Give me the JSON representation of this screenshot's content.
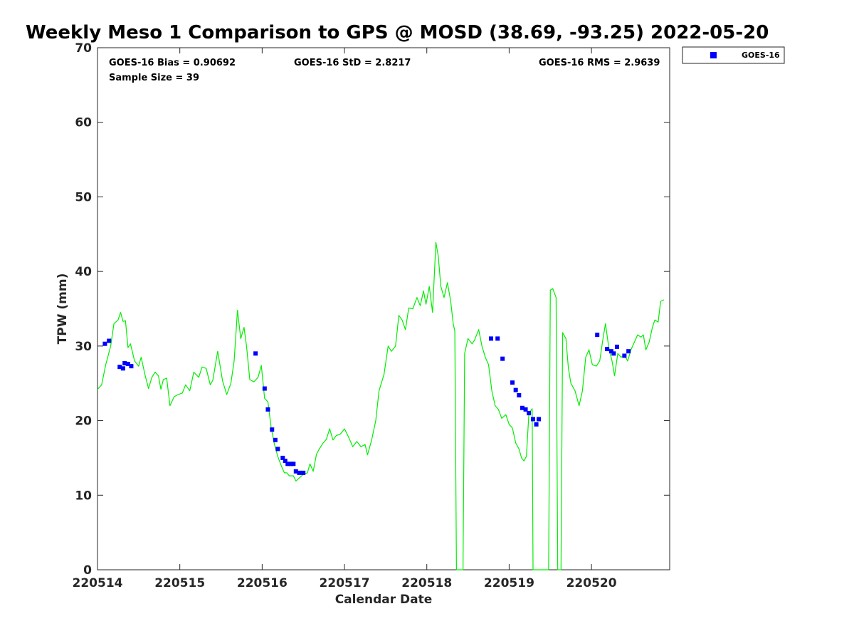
{
  "chart_data": {
    "type": "scatter",
    "title": "Weekly Meso 1 Comparison to GPS @ MOSD (38.69, -93.25) 2022-05-20",
    "xlabel": "Calendar Date",
    "ylabel": "TPW (mm)",
    "x_units": "days since 220514 tick",
    "xlim": [
      0,
      6.95
    ],
    "ylim": [
      0,
      70
    ],
    "x_ticks": [
      0,
      1,
      2,
      3,
      4,
      5,
      6
    ],
    "x_tick_labels": [
      "220514",
      "220515",
      "220516",
      "220517",
      "220518",
      "220519",
      "220520"
    ],
    "y_ticks": [
      0,
      10,
      20,
      30,
      40,
      50,
      60,
      70
    ],
    "y_tick_labels": [
      "0",
      "10",
      "20",
      "30",
      "40",
      "50",
      "60",
      "70"
    ],
    "grid": false,
    "legend_position": "top-right, outside",
    "stats": {
      "bias": "GOES-16 Bias = 0.90692",
      "std": "GOES-16 StD = 2.8217",
      "rms": "GOES-16 RMS = 2.9639",
      "sample": "Sample Size = 39"
    },
    "series": [
      {
        "name": "GOES-16",
        "kind": "scatter",
        "marker": "square",
        "color": "#0000ff",
        "points": [
          [
            0.09,
            30.3
          ],
          [
            0.14,
            30.7
          ],
          [
            0.27,
            27.2
          ],
          [
            0.31,
            27.0
          ],
          [
            0.33,
            27.7
          ],
          [
            0.37,
            27.6
          ],
          [
            0.41,
            27.3
          ],
          [
            1.92,
            29.0
          ],
          [
            2.03,
            24.3
          ],
          [
            2.07,
            21.5
          ],
          [
            2.12,
            18.8
          ],
          [
            2.16,
            17.4
          ],
          [
            2.19,
            16.2
          ],
          [
            2.25,
            15.0
          ],
          [
            2.28,
            14.6
          ],
          [
            2.31,
            14.2
          ],
          [
            2.35,
            14.2
          ],
          [
            2.38,
            14.2
          ],
          [
            2.41,
            13.2
          ],
          [
            2.45,
            13.0
          ],
          [
            2.5,
            13.0
          ],
          [
            4.78,
            31.0
          ],
          [
            4.86,
            31.0
          ],
          [
            4.92,
            28.3
          ],
          [
            5.04,
            25.1
          ],
          [
            5.08,
            24.1
          ],
          [
            5.12,
            23.4
          ],
          [
            5.16,
            21.7
          ],
          [
            5.2,
            21.5
          ],
          [
            5.24,
            21.0
          ],
          [
            5.29,
            20.2
          ],
          [
            5.33,
            19.5
          ],
          [
            5.36,
            20.2
          ],
          [
            6.07,
            31.5
          ],
          [
            6.19,
            29.6
          ],
          [
            6.24,
            29.3
          ],
          [
            6.27,
            29.0
          ],
          [
            6.31,
            29.9
          ],
          [
            6.4,
            28.7
          ],
          [
            6.45,
            29.3
          ]
        ]
      },
      {
        "name": "GPS",
        "kind": "line",
        "color": "#00ee00",
        "points": [
          [
            0.0,
            24.2
          ],
          [
            0.05,
            24.8
          ],
          [
            0.1,
            27.5
          ],
          [
            0.16,
            30.0
          ],
          [
            0.2,
            33.0
          ],
          [
            0.25,
            33.5
          ],
          [
            0.28,
            34.5
          ],
          [
            0.31,
            33.3
          ],
          [
            0.34,
            33.4
          ],
          [
            0.37,
            29.8
          ],
          [
            0.4,
            30.3
          ],
          [
            0.45,
            28.0
          ],
          [
            0.5,
            27.3
          ],
          [
            0.53,
            28.5
          ],
          [
            0.58,
            26.0
          ],
          [
            0.62,
            24.3
          ],
          [
            0.66,
            25.8
          ],
          [
            0.7,
            26.5
          ],
          [
            0.74,
            26.0
          ],
          [
            0.77,
            24.2
          ],
          [
            0.8,
            25.5
          ],
          [
            0.84,
            25.7
          ],
          [
            0.88,
            22.0
          ],
          [
            0.93,
            23.2
          ],
          [
            0.98,
            23.5
          ],
          [
            1.03,
            23.7
          ],
          [
            1.07,
            24.8
          ],
          [
            1.12,
            24.0
          ],
          [
            1.17,
            26.5
          ],
          [
            1.23,
            25.8
          ],
          [
            1.27,
            27.2
          ],
          [
            1.32,
            27.0
          ],
          [
            1.37,
            24.8
          ],
          [
            1.4,
            25.4
          ],
          [
            1.46,
            29.3
          ],
          [
            1.52,
            25.3
          ],
          [
            1.57,
            23.5
          ],
          [
            1.62,
            25.0
          ],
          [
            1.66,
            28.0
          ],
          [
            1.7,
            34.8
          ],
          [
            1.74,
            31.0
          ],
          [
            1.78,
            32.5
          ],
          [
            1.81,
            30.0
          ],
          [
            1.85,
            25.5
          ],
          [
            1.9,
            25.2
          ],
          [
            1.95,
            25.8
          ],
          [
            1.99,
            27.4
          ],
          [
            2.03,
            23.0
          ],
          [
            2.07,
            22.5
          ],
          [
            2.11,
            19.0
          ],
          [
            2.15,
            16.8
          ],
          [
            2.19,
            15.2
          ],
          [
            2.23,
            14.0
          ],
          [
            2.27,
            13.0
          ],
          [
            2.3,
            13.0
          ],
          [
            2.33,
            12.6
          ],
          [
            2.38,
            12.6
          ],
          [
            2.41,
            11.9
          ],
          [
            2.45,
            12.3
          ],
          [
            2.5,
            12.8
          ],
          [
            2.55,
            13.0
          ],
          [
            2.58,
            14.2
          ],
          [
            2.62,
            13.2
          ],
          [
            2.66,
            15.5
          ],
          [
            2.7,
            16.3
          ],
          [
            2.74,
            17.0
          ],
          [
            2.78,
            17.5
          ],
          [
            2.82,
            18.9
          ],
          [
            2.86,
            17.4
          ],
          [
            2.9,
            18.0
          ],
          [
            2.95,
            18.2
          ],
          [
            3.0,
            18.9
          ],
          [
            3.05,
            17.8
          ],
          [
            3.1,
            16.5
          ],
          [
            3.15,
            17.2
          ],
          [
            3.2,
            16.5
          ],
          [
            3.25,
            16.8
          ],
          [
            3.28,
            15.4
          ],
          [
            3.33,
            17.4
          ],
          [
            3.38,
            20.0
          ],
          [
            3.42,
            24.0
          ],
          [
            3.48,
            26.2
          ],
          [
            3.53,
            30.0
          ],
          [
            3.57,
            29.3
          ],
          [
            3.62,
            30.0
          ],
          [
            3.66,
            34.1
          ],
          [
            3.7,
            33.5
          ],
          [
            3.74,
            32.2
          ],
          [
            3.78,
            35.1
          ],
          [
            3.83,
            35.0
          ],
          [
            3.88,
            36.5
          ],
          [
            3.92,
            35.4
          ],
          [
            3.96,
            37.4
          ],
          [
            3.99,
            35.6
          ],
          [
            4.03,
            38.0
          ],
          [
            4.07,
            34.5
          ],
          [
            4.11,
            43.9
          ],
          [
            4.14,
            42.0
          ],
          [
            4.17,
            38.0
          ],
          [
            4.21,
            36.5
          ],
          [
            4.25,
            38.5
          ],
          [
            4.29,
            36.0
          ],
          [
            4.32,
            33.0
          ],
          [
            4.34,
            32.0
          ],
          [
            4.36,
            0.0
          ],
          [
            4.44,
            0.0
          ],
          [
            4.46,
            29.0
          ],
          [
            4.5,
            31.0
          ],
          [
            4.55,
            30.3
          ],
          [
            4.58,
            30.8
          ],
          [
            4.63,
            32.2
          ],
          [
            4.67,
            30.0
          ],
          [
            4.71,
            28.5
          ],
          [
            4.75,
            27.5
          ],
          [
            4.79,
            24.0
          ],
          [
            4.83,
            22.0
          ],
          [
            4.87,
            21.5
          ],
          [
            4.91,
            20.3
          ],
          [
            4.96,
            20.8
          ],
          [
            5.0,
            19.5
          ],
          [
            5.04,
            19.0
          ],
          [
            5.08,
            17.0
          ],
          [
            5.12,
            16.2
          ],
          [
            5.15,
            15.0
          ],
          [
            5.18,
            14.6
          ],
          [
            5.21,
            15.2
          ],
          [
            5.24,
            21.0
          ],
          [
            5.28,
            21.6
          ],
          [
            5.29,
            0.0
          ],
          [
            5.48,
            0.0
          ],
          [
            5.5,
            37.5
          ],
          [
            5.53,
            37.7
          ],
          [
            5.57,
            36.5
          ],
          [
            5.59,
            0.0
          ],
          [
            5.63,
            0.0
          ],
          [
            5.65,
            31.8
          ],
          [
            5.69,
            31.0
          ],
          [
            5.72,
            27.0
          ],
          [
            5.75,
            25.0
          ],
          [
            5.8,
            24.0
          ],
          [
            5.85,
            22.0
          ],
          [
            5.89,
            24.0
          ],
          [
            5.93,
            28.5
          ],
          [
            5.97,
            29.5
          ],
          [
            6.01,
            27.5
          ],
          [
            6.06,
            27.3
          ],
          [
            6.1,
            28.0
          ],
          [
            6.14,
            31.0
          ],
          [
            6.17,
            33.0
          ],
          [
            6.21,
            29.8
          ],
          [
            6.25,
            28.0
          ],
          [
            6.28,
            26.0
          ],
          [
            6.32,
            29.0
          ],
          [
            6.36,
            28.5
          ],
          [
            6.4,
            28.8
          ],
          [
            6.44,
            28.0
          ],
          [
            6.48,
            29.5
          ],
          [
            6.52,
            30.5
          ],
          [
            6.56,
            31.5
          ],
          [
            6.6,
            31.2
          ],
          [
            6.63,
            31.5
          ],
          [
            6.66,
            29.5
          ],
          [
            6.7,
            30.5
          ],
          [
            6.74,
            32.5
          ],
          [
            6.77,
            33.5
          ],
          [
            6.81,
            33.2
          ],
          [
            6.84,
            36.0
          ],
          [
            6.88,
            36.2
          ]
        ]
      }
    ]
  }
}
